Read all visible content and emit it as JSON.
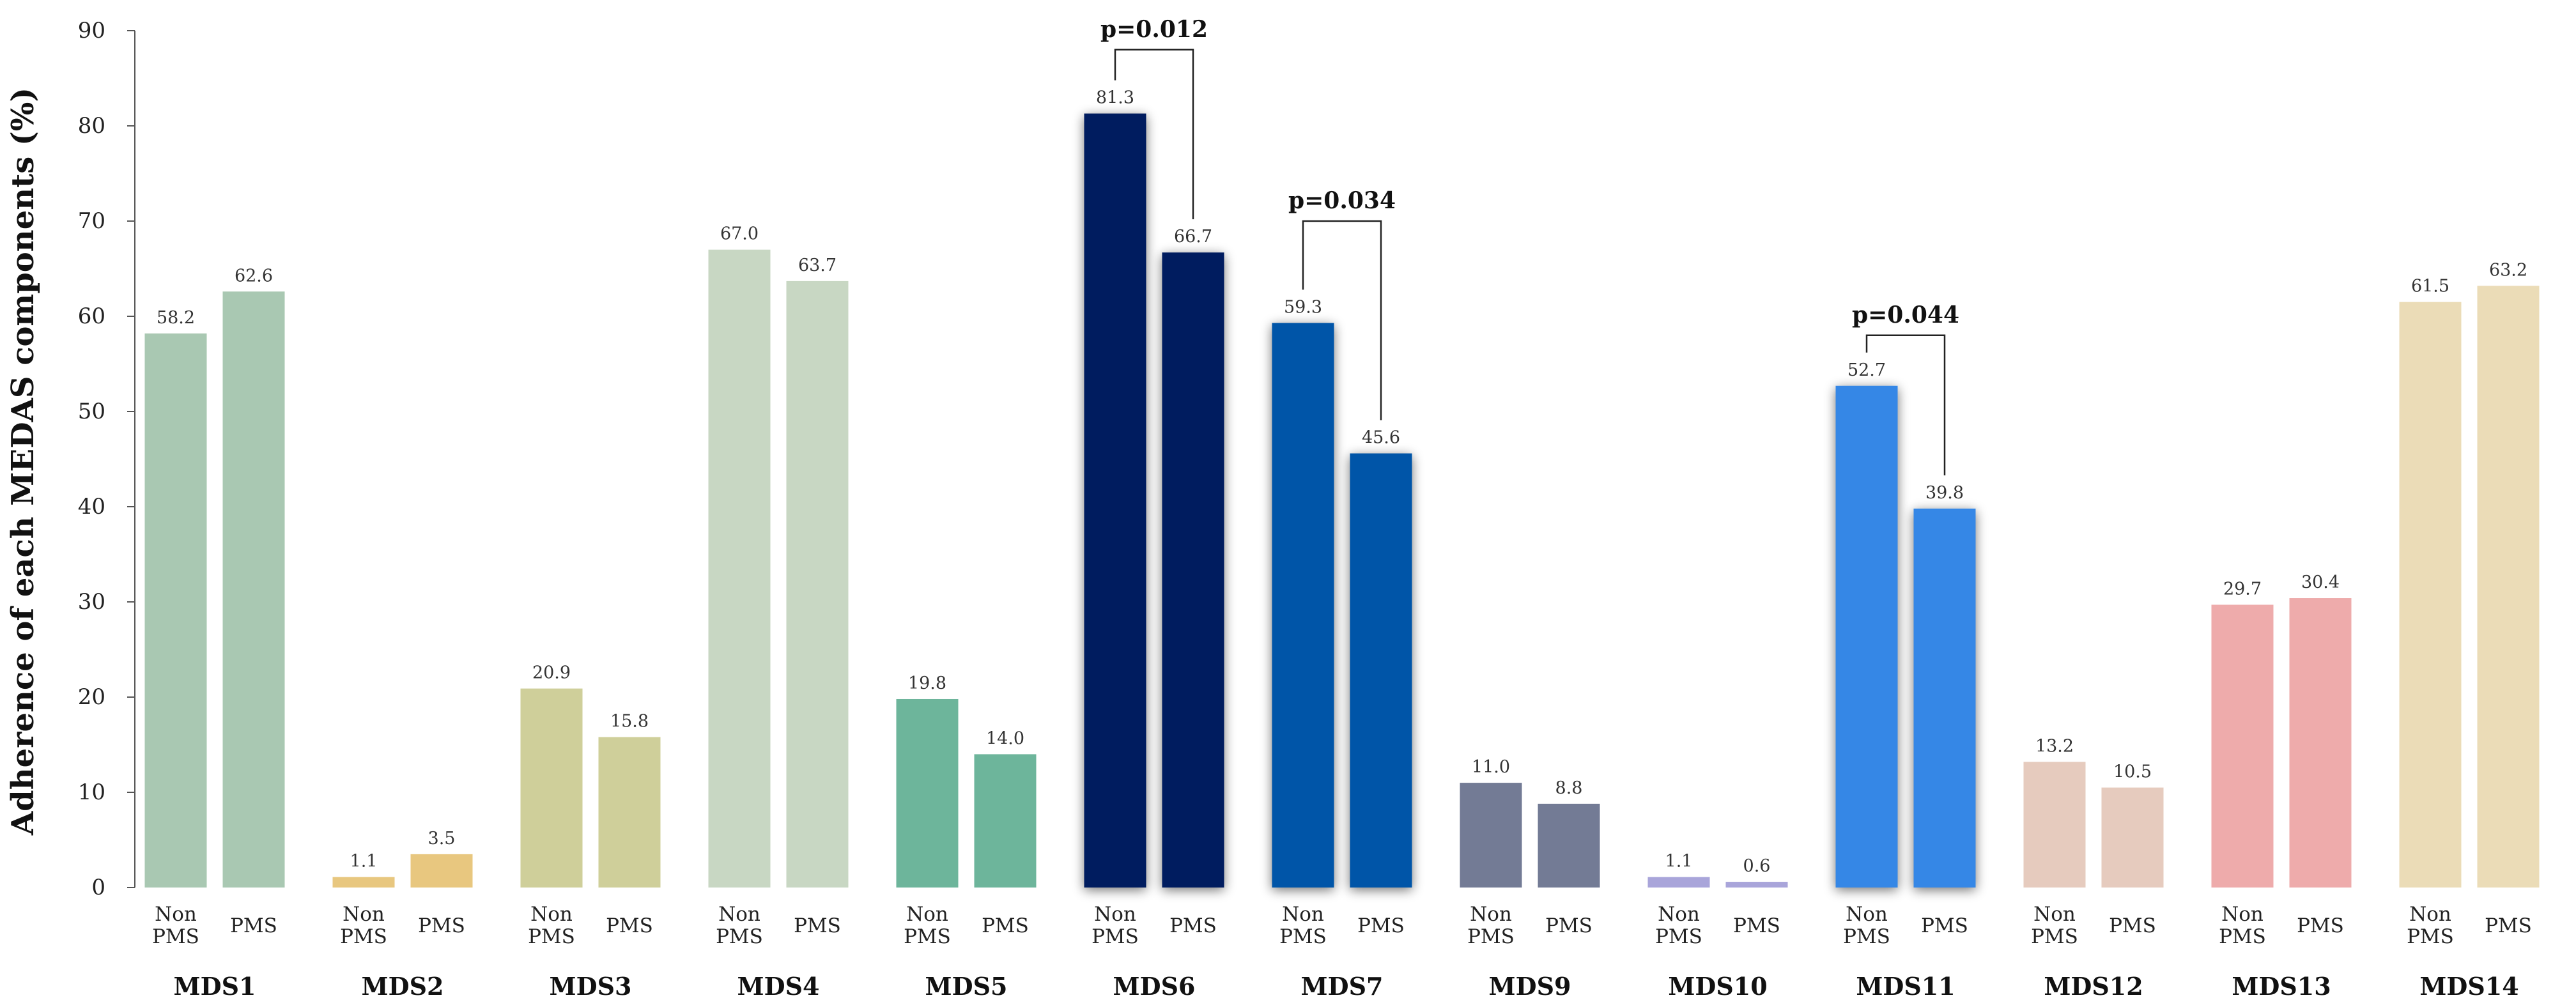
{
  "chart_data": {
    "type": "bar",
    "ylabel": "Adherence of each MEDAS components (%)",
    "xlabel": "",
    "ylim": [
      0,
      90
    ],
    "yticks": [
      "0",
      "10",
      "20",
      "30",
      "40",
      "50",
      "60",
      "70",
      "80",
      "90"
    ],
    "group_labels": [
      "Non PMS",
      "PMS"
    ],
    "group_label_lines": [
      [
        "Non",
        "PMS"
      ],
      [
        "PMS"
      ]
    ],
    "categories": [
      "MDS1",
      "MDS2",
      "MDS3",
      "MDS4",
      "MDS5",
      "MDS6",
      "MDS7",
      "MDS9",
      "MDS10",
      "MDS11",
      "MDS12",
      "MDS13",
      "MDS14"
    ],
    "series": [
      {
        "name": "Non PMS",
        "values": [
          58.2,
          1.1,
          20.9,
          67.0,
          19.8,
          81.3,
          59.3,
          11.0,
          1.1,
          52.7,
          13.2,
          29.7,
          61.5
        ]
      },
      {
        "name": "PMS",
        "values": [
          62.6,
          3.5,
          15.8,
          63.7,
          14.0,
          66.7,
          45.6,
          8.8,
          0.6,
          39.8,
          10.5,
          30.4,
          63.2
        ]
      }
    ],
    "value_labels": [
      [
        "58.2",
        "62.6"
      ],
      [
        "1.1",
        "3.5"
      ],
      [
        "20.9",
        "15.8"
      ],
      [
        "67.0",
        "63.7"
      ],
      [
        "19.8",
        "14.0"
      ],
      [
        "81.3",
        "66.7"
      ],
      [
        "59.3",
        "45.6"
      ],
      [
        "11.0",
        "8.8"
      ],
      [
        "1.1",
        "0.6"
      ],
      [
        "52.7",
        "39.8"
      ],
      [
        "13.2",
        "10.5"
      ],
      [
        "29.7",
        "30.4"
      ],
      [
        "61.5",
        "63.2"
      ]
    ],
    "colors": [
      "#a9c8b2",
      "#e8c77f",
      "#cfcf9a",
      "#c8d7c3",
      "#6db59b",
      "#041c5e",
      "#0354a8",
      "#737b95",
      "#a9a5da",
      "#3587e6",
      "#e6cbbe",
      "#eeabab",
      "#ebdcb7"
    ],
    "shadowed": [
      "MDS6",
      "MDS7",
      "MDS11"
    ],
    "annotations": [
      {
        "category": "MDS6",
        "text": "p=0.012",
        "bracket_top": 88
      },
      {
        "category": "MDS7",
        "text": "p=0.034",
        "bracket_top": 70
      },
      {
        "category": "MDS11",
        "text": "p=0.044",
        "bracket_top": 58
      }
    ],
    "grid": false
  }
}
